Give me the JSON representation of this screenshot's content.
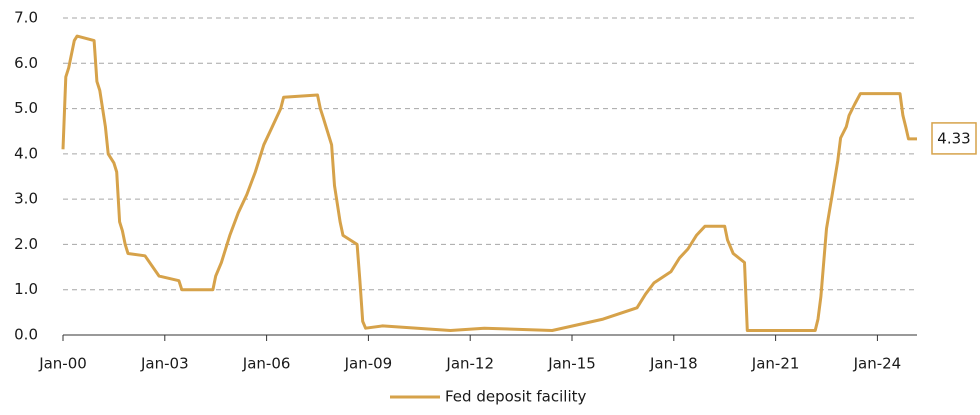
{
  "chart_data": {
    "type": "line",
    "x": [
      "Jan-00",
      "Feb-00",
      "Mar-00",
      "May-00",
      "Jun-00",
      "Dec-00",
      "Jan-01",
      "Feb-01",
      "Mar-01",
      "Apr-01",
      "May-01",
      "Jul-01",
      "Aug-01",
      "Sep-01",
      "Oct-01",
      "Nov-01",
      "Dec-01",
      "Jun-02",
      "Nov-02",
      "Jun-03",
      "Jul-03",
      "Jun-04",
      "Jul-04",
      "Sep-04",
      "Dec-04",
      "Mar-05",
      "Jun-05",
      "Sep-05",
      "Dec-05",
      "Mar-06",
      "Jun-06",
      "Jul-06",
      "Jul-07",
      "Aug-07",
      "Sep-07",
      "Oct-07",
      "Dec-07",
      "Jan-08",
      "Mar-08",
      "Apr-08",
      "Sep-08",
      "Oct-08",
      "Nov-08",
      "Dec-08",
      "Jun-09",
      "Jun-11",
      "Jun-12",
      "Jun-14",
      "Dec-15",
      "Dec-16",
      "Mar-17",
      "Jun-17",
      "Dec-17",
      "Mar-18",
      "Jun-18",
      "Sep-18",
      "Dec-18",
      "Jul-19",
      "Aug-19",
      "Oct-19",
      "Feb-20",
      "Mar-20",
      "Mar-22",
      "Apr-22",
      "May-22",
      "Jun-22",
      "Jul-22",
      "Sep-22",
      "Nov-22",
      "Dec-22",
      "Feb-23",
      "Mar-23",
      "May-23",
      "Jul-23",
      "Sep-24",
      "Oct-24",
      "Nov-24",
      "Dec-24",
      "Mar-25"
    ],
    "series": [
      {
        "name": "Fed deposit facility",
        "color": "#d6a24a",
        "values": [
          4.1,
          5.7,
          5.9,
          6.5,
          6.6,
          6.5,
          5.6,
          5.4,
          5.0,
          4.6,
          4.0,
          3.8,
          3.6,
          2.5,
          2.3,
          2.0,
          1.8,
          1.75,
          1.3,
          1.2,
          1.0,
          1.0,
          1.3,
          1.6,
          2.2,
          2.7,
          3.1,
          3.6,
          4.2,
          4.6,
          5.0,
          5.25,
          5.3,
          5.0,
          4.8,
          4.6,
          4.2,
          3.3,
          2.5,
          2.2,
          2.0,
          1.2,
          0.3,
          0.15,
          0.2,
          0.1,
          0.15,
          0.1,
          0.35,
          0.6,
          0.9,
          1.15,
          1.4,
          1.7,
          1.9,
          2.2,
          2.4,
          2.4,
          2.1,
          1.8,
          1.6,
          0.1,
          0.1,
          0.35,
          0.85,
          1.6,
          2.35,
          3.1,
          3.85,
          4.35,
          4.6,
          4.85,
          5.1,
          5.33,
          5.33,
          4.85,
          4.6,
          4.33,
          4.33
        ]
      }
    ],
    "last_value_label": 4.33,
    "xlim": [
      "Jan-00",
      "Mar-25"
    ],
    "xticks": [
      "Jan-00",
      "Jan-03",
      "Jan-06",
      "Jan-09",
      "Jan-12",
      "Jan-15",
      "Jan-18",
      "Jan-21",
      "Jan-24"
    ],
    "ylim": [
      0,
      7
    ],
    "yticks": [
      {
        "value": 0,
        "label": "0.0"
      },
      {
        "value": 1,
        "label": "1.0"
      },
      {
        "value": 2,
        "label": "2.0"
      },
      {
        "value": 3,
        "label": "3.0"
      },
      {
        "value": 4,
        "label": "4.0"
      },
      {
        "value": 5,
        "label": "5.0"
      },
      {
        "value": 6,
        "label": "6.0"
      },
      {
        "value": 7,
        "label": "7.0"
      }
    ],
    "grid": true,
    "legend": "bottom"
  }
}
